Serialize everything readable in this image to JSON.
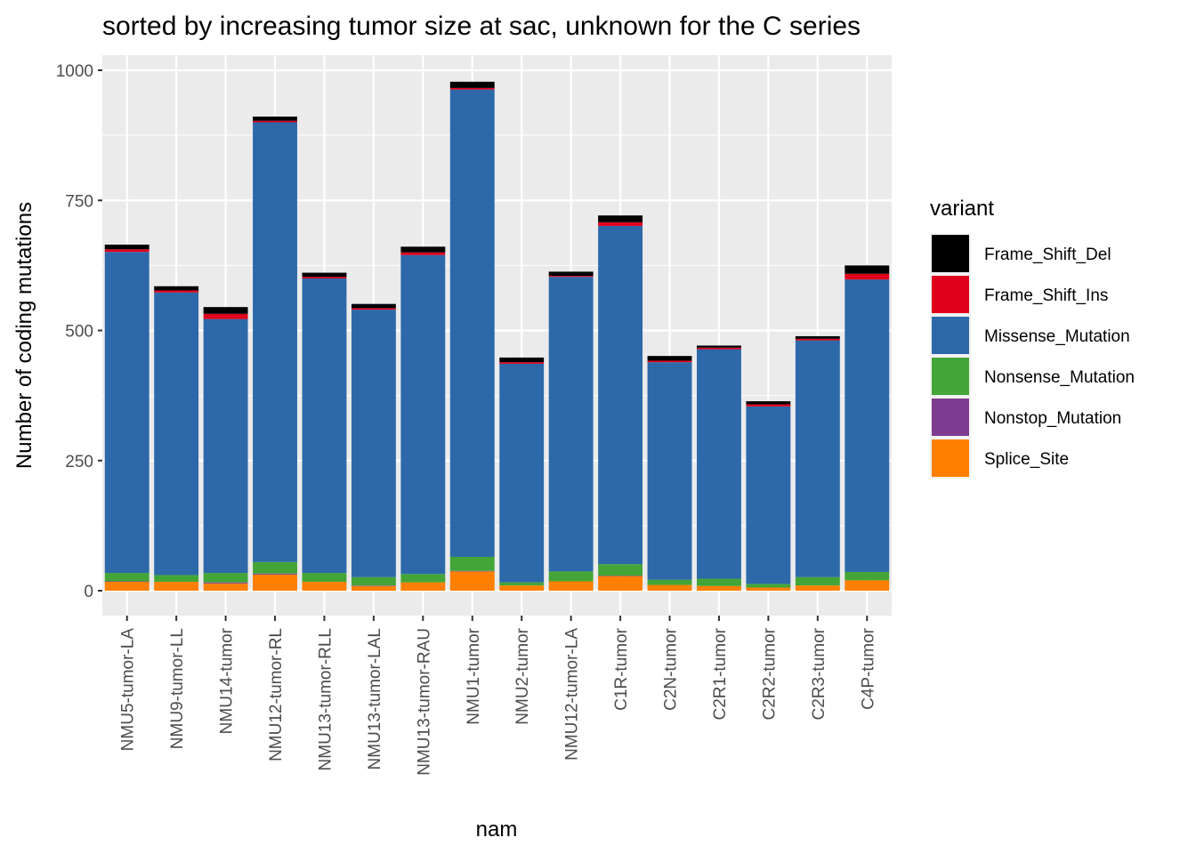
{
  "chart_data": {
    "type": "bar",
    "stacked": true,
    "title": "sorted by increasing tumor size at sac, unknown for the C series",
    "xlabel": "nam",
    "ylabel": "Number of coding mutations",
    "ylim": [
      -45,
      1025
    ],
    "yticks": [
      0,
      250,
      500,
      750,
      1000
    ],
    "grid": true,
    "legend_position": "right",
    "legend_title": "variant",
    "categories": [
      "NMU5-tumor-LA",
      "NMU9-tumor-LL",
      "NMU14-tumor",
      "NMU12-tumor-RL",
      "NMU13-tumor-RLL",
      "NMU13-tumor-LAL",
      "NMU13-tumor-RAU",
      "NMU1-tumor",
      "NMU2-tumor",
      "NMU12-tumor-LA",
      "C1R-tumor",
      "C2N-tumor",
      "C2R1-tumor",
      "C2R2-tumor",
      "C2R3-tumor",
      "C4P-tumor"
    ],
    "series": [
      {
        "name": "Splice_Site",
        "color": "#FF7F00",
        "values": [
          17,
          17,
          14,
          31,
          17,
          9,
          16,
          37,
          10,
          18,
          28,
          11,
          9,
          6,
          10,
          20
        ]
      },
      {
        "name": "Nonstop_Mutation",
        "color": "#7F3B8F",
        "values": [
          1,
          0,
          2,
          2,
          0,
          1,
          0,
          1,
          0,
          0,
          1,
          0,
          0,
          0,
          0,
          0
        ]
      },
      {
        "name": "Nonsense_Mutation",
        "color": "#43A537",
        "values": [
          16,
          13,
          18,
          22,
          17,
          16,
          16,
          27,
          6,
          19,
          22,
          10,
          14,
          7,
          16,
          16
        ]
      },
      {
        "name": "Missense_Mutation",
        "color": "#2D69A8",
        "values": [
          617,
          543,
          488,
          845,
          566,
          514,
          613,
          898,
          420,
          566,
          650,
          418,
          441,
          341,
          455,
          562
        ]
      },
      {
        "name": "Frame_Shift_Ins",
        "color": "#E0001C",
        "values": [
          5,
          4,
          10,
          3,
          3,
          3,
          5,
          3,
          3,
          2,
          7,
          3,
          3,
          4,
          3,
          11
        ]
      },
      {
        "name": "Frame_Shift_Del",
        "color": "#000000",
        "values": [
          9,
          8,
          13,
          8,
          8,
          8,
          11,
          12,
          9,
          8,
          13,
          9,
          4,
          6,
          5,
          16
        ]
      }
    ]
  }
}
